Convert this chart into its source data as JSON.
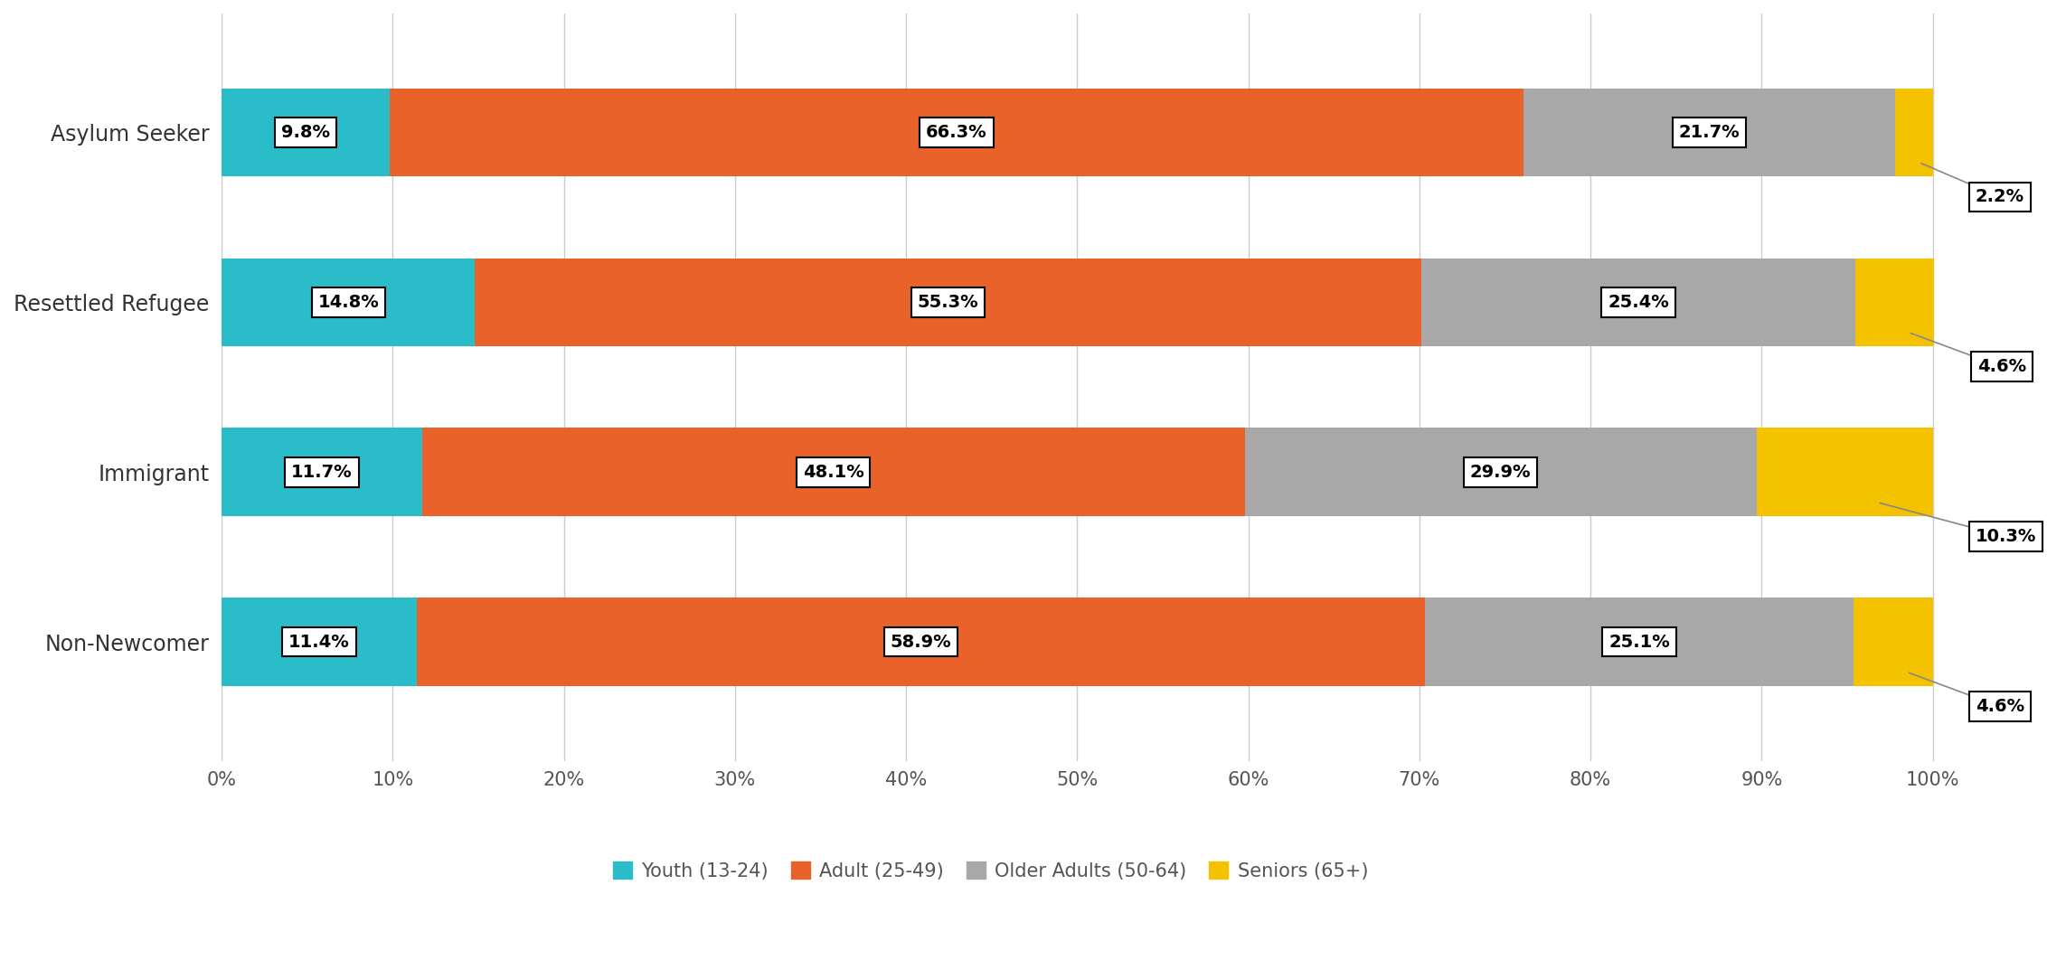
{
  "categories": [
    "Asylum Seeker",
    "Resettled Refugee",
    "Immigrant",
    "Non-Newcomer"
  ],
  "series": {
    "Youth (13-24)": [
      9.8,
      14.8,
      11.7,
      11.4
    ],
    "Adult (25-49)": [
      66.3,
      55.3,
      48.1,
      58.9
    ],
    "Older Adults (50-64)": [
      21.7,
      25.4,
      29.9,
      25.1
    ],
    "Seniors (65+)": [
      2.2,
      4.6,
      10.3,
      4.6
    ]
  },
  "colors": {
    "Youth (13-24)": "#2BBCCA",
    "Adult (25-49)": "#E8622A",
    "Older Adults (50-64)": "#A8A8A8",
    "Seniors (65+)": "#F5C200"
  },
  "bar_height": 0.52,
  "xlim": [
    0,
    107
  ],
  "xticks": [
    0,
    10,
    20,
    30,
    40,
    50,
    60,
    70,
    80,
    90,
    100
  ],
  "xticklabels": [
    "0%",
    "10%",
    "20%",
    "30%",
    "40%",
    "50%",
    "60%",
    "70%",
    "80%",
    "90%",
    "100%"
  ],
  "background_color": "#FFFFFF",
  "grid_color": "#CCCCCC",
  "label_fontsize": 17,
  "tick_fontsize": 15,
  "legend_fontsize": 15,
  "annotation_fontsize": 14,
  "figsize": [
    22.85,
    10.62
  ],
  "dpi": 100,
  "seniors_offsets": [
    0.38,
    0.38,
    0.38,
    0.38
  ],
  "seniors_xoffsets": [
    2.5,
    2.5,
    2.5,
    2.5
  ]
}
